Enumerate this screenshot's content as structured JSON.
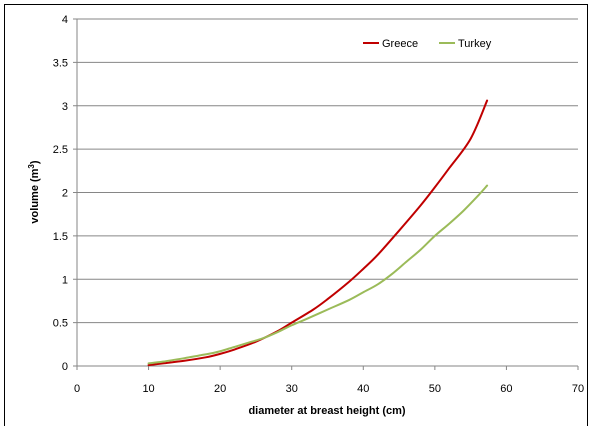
{
  "chart_data": {
    "type": "line",
    "title": "",
    "xlabel": "diameter at breast height (cm)",
    "ylabel_main": "volume (m",
    "ylabel_sup": "3",
    "ylabel_tail": ")",
    "xlim": [
      0,
      70
    ],
    "ylim": [
      0,
      4
    ],
    "xticks": [
      "0",
      "10",
      "20",
      "30",
      "40",
      "50",
      "60",
      "70"
    ],
    "yticks": [
      "0",
      "0.5",
      "1",
      "1.5",
      "2",
      "2.5",
      "3",
      "3.5",
      "4"
    ],
    "grid": "horizontal",
    "legend_position": "top-right",
    "series": [
      {
        "name": "Greece",
        "color": "#c00000",
        "points": [
          [
            10,
            0.01
          ],
          [
            12,
            0.03
          ],
          [
            15,
            0.06
          ],
          [
            18,
            0.1
          ],
          [
            20,
            0.14
          ],
          [
            22,
            0.19
          ],
          [
            25,
            0.28
          ],
          [
            28,
            0.4
          ],
          [
            30,
            0.5
          ],
          [
            33,
            0.65
          ],
          [
            35,
            0.77
          ],
          [
            38,
            0.97
          ],
          [
            40,
            1.12
          ],
          [
            42,
            1.28
          ],
          [
            45,
            1.56
          ],
          [
            48,
            1.85
          ],
          [
            50,
            2.06
          ],
          [
            52,
            2.28
          ],
          [
            55,
            2.62
          ],
          [
            57.3,
            3.06
          ]
        ]
      },
      {
        "name": "Turkey",
        "color": "#9bbb59",
        "points": [
          [
            10,
            0.03
          ],
          [
            12,
            0.05
          ],
          [
            15,
            0.09
          ],
          [
            17,
            0.12
          ],
          [
            19,
            0.15
          ],
          [
            20,
            0.17
          ],
          [
            22,
            0.22
          ],
          [
            24,
            0.27
          ],
          [
            26,
            0.32
          ],
          [
            28,
            0.39
          ],
          [
            30,
            0.47
          ],
          [
            32,
            0.54
          ],
          [
            35,
            0.65
          ],
          [
            38,
            0.76
          ],
          [
            40,
            0.85
          ],
          [
            42,
            0.94
          ],
          [
            44,
            1.06
          ],
          [
            46,
            1.2
          ],
          [
            48,
            1.34
          ],
          [
            50,
            1.5
          ],
          [
            52,
            1.64
          ],
          [
            54,
            1.79
          ],
          [
            56,
            1.96
          ],
          [
            57.3,
            2.08
          ]
        ]
      }
    ]
  }
}
